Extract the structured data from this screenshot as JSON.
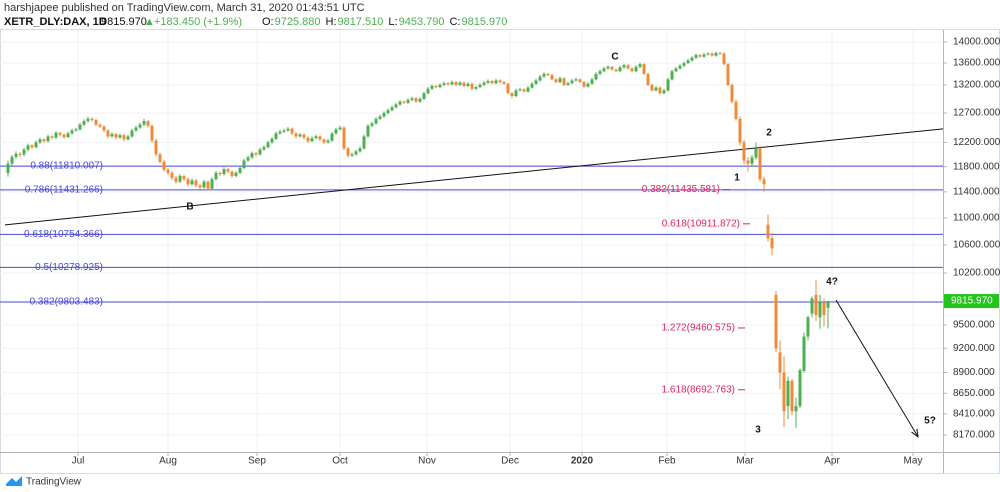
{
  "header": {
    "publisher": "harshjapee published on TradingView.com, March 31, 2020 01:43:51 UTC",
    "symbol": "XETR_DLY:DAX, 1D",
    "last": "9815.970",
    "change": "+183.450 (+1.9%)",
    "ohlc": [
      {
        "label": "O:",
        "value": "9725.880"
      },
      {
        "label": "H:",
        "value": "9817.510"
      },
      {
        "label": "L:",
        "value": "9453.790"
      },
      {
        "label": "C:",
        "value": "9815.970"
      }
    ]
  },
  "footer": {
    "brand": "TradingView"
  },
  "chart_data": {
    "type": "candlestick",
    "log_scale": true,
    "grid": true,
    "up_color": "#4caf50",
    "down_color": "#ef8a37",
    "level_color": "#4a4ad6",
    "extension_color": "#e0245e",
    "ylim": [
      7982,
      14231
    ],
    "yticks": [
      {
        "value": 14000,
        "label": "14000.000"
      },
      {
        "value": 13600,
        "label": "13600.000"
      },
      {
        "value": 13200,
        "label": "13200.000"
      },
      {
        "value": 12700,
        "label": "12700.000"
      },
      {
        "value": 12200,
        "label": "12200.000"
      },
      {
        "value": 11800,
        "label": "11800.000"
      },
      {
        "value": 11400,
        "label": "11400.000"
      },
      {
        "value": 11000,
        "label": "11000.000"
      },
      {
        "value": 10600,
        "label": "10600.000"
      },
      {
        "value": 10200,
        "label": "10200.000"
      },
      {
        "value": 9800,
        "label": "9800.000"
      },
      {
        "value": 9500,
        "label": "9500.000"
      },
      {
        "value": 9200,
        "label": "9200.000"
      },
      {
        "value": 8900,
        "label": "8900.000"
      },
      {
        "value": 8650,
        "label": "8650.000"
      },
      {
        "value": 8410,
        "label": "8410.000"
      },
      {
        "value": 8170,
        "label": "8170.000"
      }
    ],
    "xlim": [
      -2,
      233.75
    ],
    "xticks": [
      {
        "value": 17.5,
        "label": "Jul"
      },
      {
        "value": 40,
        "label": "Aug"
      },
      {
        "value": 62.25,
        "label": "Sep"
      },
      {
        "value": 83,
        "label": "Oct"
      },
      {
        "value": 104.75,
        "label": "Nov"
      },
      {
        "value": 125.5,
        "label": "Dec"
      },
      {
        "value": 143.5,
        "label": "2020"
      },
      {
        "value": 164.75,
        "label": "Feb"
      },
      {
        "value": 184.25,
        "label": "Mar"
      },
      {
        "value": 206,
        "label": "Apr"
      },
      {
        "value": 226.25,
        "label": "May"
      }
    ],
    "candles": [
      [
        11700,
        11900,
        11640,
        11850
      ],
      [
        11850,
        11990,
        11820,
        11960
      ],
      [
        11960,
        12050,
        11930,
        12010
      ],
      [
        12010,
        12040,
        11960,
        12000
      ],
      [
        12000,
        12110,
        11970,
        12080
      ],
      [
        12080,
        12180,
        12050,
        12150
      ],
      [
        12150,
        12170,
        12090,
        12120
      ],
      [
        12120,
        12230,
        12100,
        12200
      ],
      [
        12200,
        12280,
        12170,
        12250
      ],
      [
        12250,
        12270,
        12190,
        12220
      ],
      [
        12220,
        12330,
        12200,
        12300
      ],
      [
        12300,
        12320,
        12250,
        12280
      ],
      [
        12280,
        12390,
        12260,
        12360
      ],
      [
        12360,
        12380,
        12300,
        12330
      ],
      [
        12330,
        12350,
        12260,
        12290
      ],
      [
        12290,
        12380,
        12270,
        12350
      ],
      [
        12350,
        12430,
        12330,
        12400
      ],
      [
        12400,
        12450,
        12380,
        12420
      ],
      [
        12420,
        12530,
        12400,
        12500
      ],
      [
        12500,
        12590,
        12480,
        12560
      ],
      [
        12560,
        12640,
        12540,
        12600
      ],
      [
        12600,
        12630,
        12550,
        12580
      ],
      [
        12580,
        12600,
        12470,
        12500
      ],
      [
        12500,
        12520,
        12440,
        12470
      ],
      [
        12470,
        12490,
        12370,
        12400
      ],
      [
        12400,
        12420,
        12270,
        12300
      ],
      [
        12300,
        12370,
        12280,
        12340
      ],
      [
        12340,
        12360,
        12250,
        12280
      ],
      [
        12280,
        12350,
        12260,
        12320
      ],
      [
        12320,
        12340,
        12220,
        12250
      ],
      [
        12250,
        12330,
        12230,
        12300
      ],
      [
        12300,
        12430,
        12280,
        12400
      ],
      [
        12400,
        12480,
        12380,
        12450
      ],
      [
        12450,
        12530,
        12430,
        12500
      ],
      [
        12500,
        12600,
        12480,
        12560
      ],
      [
        12560,
        12580,
        12450,
        12480
      ],
      [
        12480,
        12500,
        12200,
        12230
      ],
      [
        12230,
        12260,
        11970,
        12000
      ],
      [
        12000,
        12030,
        11850,
        11880
      ],
      [
        11880,
        11910,
        11720,
        11750
      ],
      [
        11750,
        11780,
        11670,
        11700
      ],
      [
        11700,
        11730,
        11590,
        11620
      ],
      [
        11620,
        11650,
        11530,
        11560
      ],
      [
        11560,
        11680,
        11540,
        11650
      ],
      [
        11650,
        11670,
        11570,
        11600
      ],
      [
        11600,
        11630,
        11490,
        11520
      ],
      [
        11520,
        11610,
        11500,
        11580
      ],
      [
        11580,
        11600,
        11470,
        11500
      ],
      [
        11500,
        11530,
        11440,
        11470
      ],
      [
        11470,
        11590,
        11450,
        11560
      ],
      [
        11560,
        11580,
        11420,
        11450
      ],
      [
        11450,
        11630,
        11430,
        11600
      ],
      [
        11600,
        11730,
        11580,
        11700
      ],
      [
        11700,
        11720,
        11650,
        11680
      ],
      [
        11680,
        11790,
        11660,
        11760
      ],
      [
        11760,
        11780,
        11690,
        11720
      ],
      [
        11720,
        11740,
        11620,
        11650
      ],
      [
        11650,
        11730,
        11630,
        11700
      ],
      [
        11700,
        11810,
        11680,
        11780
      ],
      [
        11780,
        11930,
        11760,
        11900
      ],
      [
        11900,
        11980,
        11880,
        11950
      ],
      [
        11950,
        12050,
        11930,
        12020
      ],
      [
        12020,
        12040,
        11970,
        12000
      ],
      [
        12000,
        12110,
        11980,
        12080
      ],
      [
        12080,
        12150,
        12060,
        12120
      ],
      [
        12120,
        12230,
        12100,
        12200
      ],
      [
        12200,
        12290,
        12180,
        12260
      ],
      [
        12260,
        12380,
        12240,
        12350
      ],
      [
        12350,
        12410,
        12330,
        12380
      ],
      [
        12380,
        12430,
        12360,
        12400
      ],
      [
        12400,
        12460,
        12380,
        12430
      ],
      [
        12430,
        12450,
        12320,
        12350
      ],
      [
        12350,
        12370,
        12270,
        12300
      ],
      [
        12300,
        12360,
        12280,
        12330
      ],
      [
        12330,
        12350,
        12250,
        12280
      ],
      [
        12280,
        12300,
        12190,
        12220
      ],
      [
        12220,
        12300,
        12200,
        12270
      ],
      [
        12270,
        12330,
        12250,
        12300
      ],
      [
        12300,
        12320,
        12220,
        12250
      ],
      [
        12250,
        12270,
        12170,
        12200
      ],
      [
        12200,
        12260,
        12180,
        12230
      ],
      [
        12230,
        12380,
        12210,
        12350
      ],
      [
        12350,
        12450,
        12330,
        12420
      ],
      [
        12420,
        12480,
        12400,
        12450
      ],
      [
        12450,
        12470,
        12070,
        12100
      ],
      [
        12100,
        12120,
        11950,
        11980
      ],
      [
        11980,
        12030,
        11960,
        12000
      ],
      [
        12000,
        12080,
        11980,
        12050
      ],
      [
        12050,
        12130,
        12030,
        12100
      ],
      [
        12100,
        12330,
        12080,
        12300
      ],
      [
        12300,
        12510,
        12280,
        12480
      ],
      [
        12480,
        12550,
        12460,
        12520
      ],
      [
        12520,
        12630,
        12500,
        12600
      ],
      [
        12600,
        12670,
        12580,
        12640
      ],
      [
        12640,
        12730,
        12620,
        12700
      ],
      [
        12700,
        12780,
        12680,
        12750
      ],
      [
        12750,
        12830,
        12730,
        12800
      ],
      [
        12800,
        12880,
        12780,
        12850
      ],
      [
        12850,
        12930,
        12830,
        12900
      ],
      [
        12900,
        12920,
        12860,
        12880
      ],
      [
        12880,
        12960,
        12860,
        12930
      ],
      [
        12930,
        12990,
        12910,
        12960
      ],
      [
        12960,
        12980,
        12880,
        12900
      ],
      [
        12900,
        12980,
        12880,
        12950
      ],
      [
        12950,
        13080,
        12930,
        13050
      ],
      [
        13050,
        13160,
        13030,
        13130
      ],
      [
        13130,
        13210,
        13110,
        13180
      ],
      [
        13180,
        13200,
        13140,
        13160
      ],
      [
        13160,
        13230,
        13140,
        13200
      ],
      [
        13200,
        13260,
        13180,
        13230
      ],
      [
        13230,
        13250,
        13190,
        13210
      ],
      [
        13210,
        13280,
        13190,
        13250
      ],
      [
        13250,
        13270,
        13180,
        13200
      ],
      [
        13200,
        13270,
        13180,
        13240
      ],
      [
        13240,
        13260,
        13160,
        13180
      ],
      [
        13180,
        13250,
        13160,
        13220
      ],
      [
        13220,
        13240,
        13110,
        13130
      ],
      [
        13130,
        13190,
        13110,
        13160
      ],
      [
        13160,
        13230,
        13140,
        13200
      ],
      [
        13200,
        13270,
        13180,
        13240
      ],
      [
        13240,
        13300,
        13220,
        13270
      ],
      [
        13270,
        13290,
        13210,
        13230
      ],
      [
        13230,
        13310,
        13210,
        13280
      ],
      [
        13280,
        13300,
        13230,
        13250
      ],
      [
        13250,
        13270,
        13200,
        13220
      ],
      [
        13220,
        13240,
        13030,
        13050
      ],
      [
        13050,
        13070,
        12960,
        13000
      ],
      [
        13000,
        13130,
        12980,
        13100
      ],
      [
        13100,
        13150,
        13080,
        13120
      ],
      [
        13120,
        13140,
        13060,
        13080
      ],
      [
        13080,
        13180,
        13060,
        13150
      ],
      [
        13150,
        13250,
        13130,
        13220
      ],
      [
        13220,
        13310,
        13200,
        13280
      ],
      [
        13280,
        13380,
        13260,
        13350
      ],
      [
        13350,
        13430,
        13330,
        13400
      ],
      [
        13400,
        13420,
        13360,
        13380
      ],
      [
        13380,
        13400,
        13280,
        13300
      ],
      [
        13300,
        13320,
        13230,
        13250
      ],
      [
        13250,
        13350,
        13230,
        13320
      ],
      [
        13320,
        13340,
        13180,
        13200
      ],
      [
        13200,
        13260,
        13180,
        13230
      ],
      [
        13230,
        13310,
        13210,
        13280
      ],
      [
        13280,
        13330,
        13260,
        13300
      ],
      [
        13300,
        13320,
        13230,
        13250
      ],
      [
        13250,
        13270,
        13150,
        13170
      ],
      [
        13170,
        13250,
        13150,
        13220
      ],
      [
        13220,
        13330,
        13200,
        13300
      ],
      [
        13300,
        13430,
        13280,
        13400
      ],
      [
        13400,
        13480,
        13380,
        13450
      ],
      [
        13450,
        13530,
        13430,
        13500
      ],
      [
        13500,
        13560,
        13480,
        13530
      ],
      [
        13530,
        13550,
        13460,
        13480
      ],
      [
        13480,
        13500,
        13430,
        13450
      ],
      [
        13450,
        13550,
        13430,
        13520
      ],
      [
        13520,
        13590,
        13500,
        13560
      ],
      [
        13560,
        13580,
        13480,
        13500
      ],
      [
        13500,
        13520,
        13430,
        13450
      ],
      [
        13450,
        13560,
        13430,
        13530
      ],
      [
        13530,
        13610,
        13510,
        13580
      ],
      [
        13580,
        13600,
        13380,
        13400
      ],
      [
        13400,
        13420,
        13180,
        13200
      ],
      [
        13200,
        13220,
        13080,
        13100
      ],
      [
        13100,
        13180,
        13080,
        13150
      ],
      [
        13150,
        13170,
        13030,
        13050
      ],
      [
        13050,
        13130,
        13030,
        13100
      ],
      [
        13100,
        13330,
        13080,
        13300
      ],
      [
        13300,
        13480,
        13280,
        13450
      ],
      [
        13450,
        13530,
        13430,
        13500
      ],
      [
        13500,
        13580,
        13480,
        13550
      ],
      [
        13550,
        13630,
        13530,
        13600
      ],
      [
        13600,
        13680,
        13580,
        13650
      ],
      [
        13650,
        13730,
        13630,
        13700
      ],
      [
        13700,
        13780,
        13680,
        13750
      ],
      [
        13750,
        13770,
        13700,
        13720
      ],
      [
        13720,
        13790,
        13700,
        13760
      ],
      [
        13760,
        13800,
        13740,
        13780
      ],
      [
        13780,
        13800,
        13720,
        13740
      ],
      [
        13740,
        13820,
        13720,
        13790
      ],
      [
        13790,
        13810,
        13760,
        13780
      ],
      [
        13780,
        13800,
        13560,
        13580
      ],
      [
        13580,
        13600,
        13180,
        13200
      ],
      [
        13200,
        13230,
        12870,
        12900
      ],
      [
        12900,
        12940,
        12570,
        12600
      ],
      [
        12600,
        12640,
        12150,
        12200
      ],
      [
        12200,
        12240,
        11840,
        11900
      ],
      [
        11900,
        11960,
        11720,
        11850
      ],
      [
        11850,
        11990,
        11800,
        11950
      ],
      [
        11950,
        12200,
        11920,
        12100
      ],
      [
        12100,
        12140,
        11560,
        11600
      ],
      [
        11600,
        11640,
        11400,
        11520
      ],
      [
        10900,
        11050,
        10650,
        10700
      ],
      [
        10700,
        10780,
        10450,
        10550
      ],
      [
        9900,
        9950,
        9150,
        9200
      ],
      [
        9150,
        9300,
        8700,
        8900
      ],
      [
        8900,
        9100,
        8260,
        8440
      ],
      [
        8500,
        8850,
        8350,
        8800
      ],
      [
        8800,
        8820,
        8400,
        8440
      ],
      [
        8440,
        8600,
        8250,
        8500
      ],
      [
        8500,
        8950,
        8480,
        8930
      ],
      [
        8920,
        9400,
        8900,
        9350
      ],
      [
        9350,
        9620,
        9300,
        9600
      ],
      [
        9650,
        9880,
        9600,
        9850
      ],
      [
        9900,
        10100,
        9550,
        9630
      ],
      [
        9600,
        9900,
        9450,
        9800
      ],
      [
        9800,
        9850,
        9480,
        9630
      ],
      [
        9725.88,
        9817.51,
        9453.79,
        9815.97
      ]
    ],
    "levels": [
      {
        "label": "0.88(11810.007)",
        "value": 11810.007
      },
      {
        "label": "0.786(11431.266)",
        "value": 11431.266
      },
      {
        "label": "0.618(10754.366)",
        "value": 10754.366
      },
      {
        "label": "0.5(10278.925)",
        "value": 10278.925
      },
      {
        "label": "0.382(9803.483)",
        "value": 9803.483
      }
    ],
    "extensions": [
      {
        "label": "0.382(11435.581)",
        "value": 11435.581
      },
      {
        "label": "0.618(10911.872)",
        "value": 10911.872
      },
      {
        "label": "1.272(9460.575)",
        "value": 9460.575
      },
      {
        "label": "1.618(8692.763)",
        "value": 8692.763
      }
    ],
    "trendline": {
      "x": [
        -0.75,
        233.75
      ],
      "y": [
        10896,
        12428
      ]
    },
    "arrow": {
      "x": [
        207,
        227.5
      ],
      "y": [
        9830,
        8150
      ]
    },
    "annotations": [
      "C",
      "B",
      "1",
      "2",
      "3",
      "4?",
      "5?"
    ],
    "last_price": {
      "value": 9815.97,
      "label": "9815.970"
    }
  }
}
